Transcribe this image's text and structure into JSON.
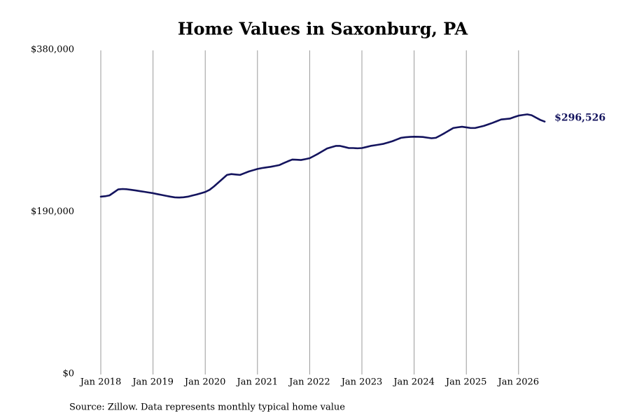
{
  "chart_data": {
    "type": "line",
    "title": "Home Values in Saxonburg, PA",
    "source": "Source: Zillow. Data represents monthly typical home value",
    "categories": [
      "Jan 2018",
      null,
      null,
      null,
      null,
      null,
      null,
      null,
      null,
      null,
      null,
      null,
      "Jan 2019",
      null,
      null,
      null,
      null,
      null,
      null,
      null,
      null,
      null,
      null,
      null,
      "Jan 2020",
      null,
      null,
      null,
      null,
      null,
      null,
      null,
      null,
      null,
      null,
      null,
      "Jan 2021",
      null,
      null,
      null,
      null,
      null,
      null,
      null,
      null,
      null,
      null,
      null,
      "Jan 2022",
      null,
      null,
      null,
      null,
      null,
      null,
      null,
      null,
      null,
      null,
      null,
      "Jan 2023",
      null,
      null,
      null,
      null,
      null,
      null,
      null,
      null,
      null,
      null,
      null,
      "Jan 2024",
      null,
      null,
      null,
      null,
      null,
      null,
      null,
      null,
      null,
      null,
      null,
      "Jan 2025",
      null,
      null,
      null,
      null,
      null,
      null,
      null,
      null,
      null,
      null,
      null,
      "Jan 2026",
      null,
      null,
      null,
      null,
      null,
      null
    ],
    "values": [
      208500,
      209000,
      210000,
      213500,
      217000,
      217500,
      217200,
      216500,
      215800,
      215000,
      214200,
      213400,
      212600,
      211500,
      210500,
      209500,
      208500,
      207700,
      207500,
      207800,
      208500,
      209800,
      211000,
      212500,
      214000,
      216500,
      220500,
      225000,
      229500,
      234000,
      235000,
      234500,
      234000,
      236000,
      238000,
      239500,
      241000,
      242000,
      242800,
      243500,
      244500,
      245500,
      247800,
      250000,
      252000,
      251800,
      251500,
      252500,
      253600,
      256300,
      259000,
      262000,
      265000,
      266500,
      268000,
      268000,
      266800,
      265500,
      265500,
      265200,
      265500,
      266700,
      268000,
      268800,
      269600,
      270500,
      272000,
      273500,
      275500,
      277500,
      278200,
      278600,
      278800,
      278700,
      278500,
      277700,
      277000,
      277500,
      280200,
      283000,
      286000,
      289000,
      289800,
      290500,
      289800,
      289000,
      289000,
      290200,
      291500,
      293200,
      295000,
      297000,
      299000,
      299500,
      300000,
      301800,
      303500,
      304300,
      305000,
      304000,
      301200,
      298500,
      296526
    ],
    "value_labels": [
      null,
      null,
      null,
      null,
      null,
      null,
      null,
      null,
      null,
      null,
      null,
      null,
      null,
      null,
      null,
      null,
      null,
      null,
      null,
      null,
      null,
      null,
      null,
      null,
      null,
      null,
      null,
      null,
      null,
      null,
      null,
      null,
      null,
      null,
      null,
      null,
      null,
      null,
      null,
      null,
      null,
      null,
      null,
      null,
      null,
      null,
      null,
      null,
      null,
      null,
      null,
      null,
      null,
      null,
      null,
      null,
      null,
      null,
      null,
      null,
      null,
      null,
      null,
      null,
      null,
      null,
      null,
      null,
      null,
      null,
      null,
      null,
      null,
      null,
      null,
      null,
      null,
      null,
      null,
      null,
      null,
      null,
      null,
      null,
      null,
      null,
      null,
      null,
      null,
      null,
      null,
      null,
      null,
      null,
      null,
      null,
      null,
      null,
      null,
      null,
      null,
      null,
      "$296,526"
    ],
    "color": "#14145e",
    "ylim": [
      0,
      380000
    ],
    "yticks": [
      {
        "value": 0,
        "label": "$0"
      },
      {
        "value": 190000,
        "label": "$190,000"
      },
      {
        "value": 380000,
        "label": "$380,000"
      }
    ],
    "grid": "x"
  }
}
